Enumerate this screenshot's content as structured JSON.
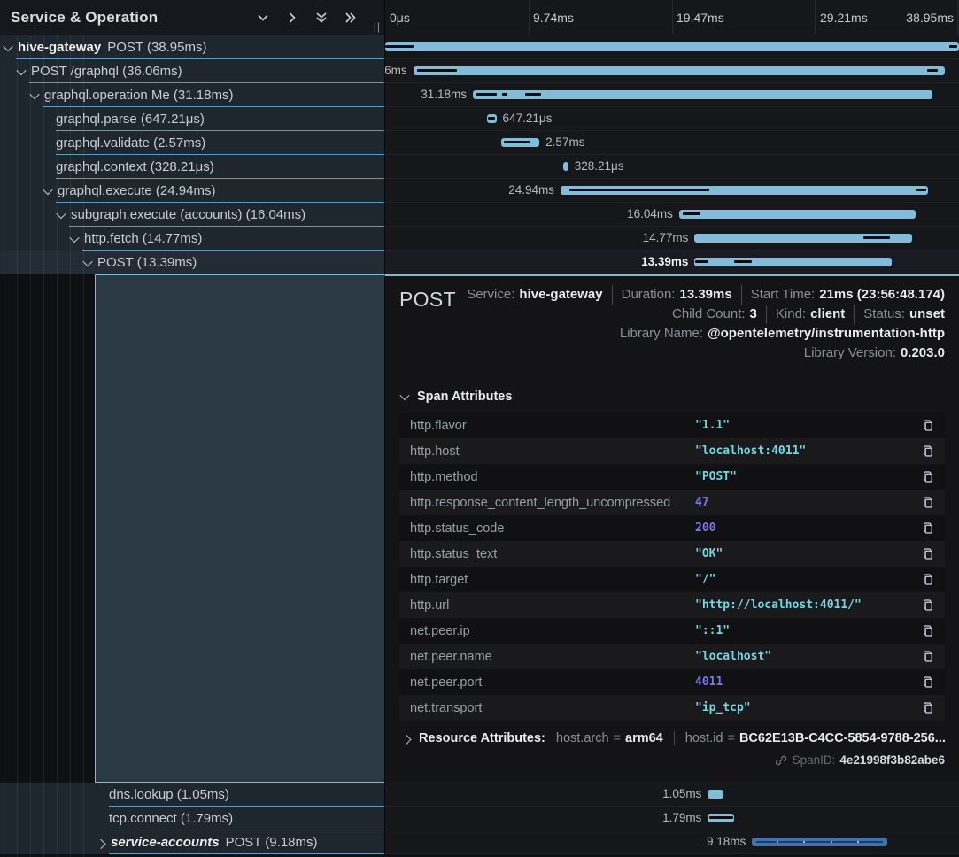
{
  "header": {
    "title": "Service & Operation"
  },
  "ui": {
    "resizer_glyph": "||",
    "accent_bar_color": "#82bcd8",
    "alt_bar_color": "#3f71b5",
    "selection_border_color": "#7fb9d2",
    "row_separator_color": "#5d9cbc",
    "string_value_color": "#72d7e2",
    "number_value_color": "#7e74ea"
  },
  "ruler": {
    "ticks": [
      {
        "label": "0μs"
      },
      {
        "label": "9.74ms"
      },
      {
        "label": "19.47ms"
      },
      {
        "label": "29.21ms"
      },
      {
        "label": "38.95ms"
      }
    ]
  },
  "trace": {
    "total_ms": 38.95,
    "spans": [
      {
        "service": "hive-gateway",
        "service_style": "bold",
        "operation": "POST",
        "duration_text": "38.95ms",
        "depth": 0,
        "chevron": "down",
        "start_ms": 0,
        "dur_ms": 38.95,
        "label_side": "none",
        "label": "",
        "marks": [
          [
            0,
            5
          ],
          [
            98.3,
            99.7
          ]
        ]
      },
      {
        "operation": "POST /graphql",
        "duration_text": "36.06ms",
        "depth": 1,
        "chevron": "down",
        "start_ms": 1.9,
        "dur_ms": 36.06,
        "label_side": "left",
        "label": "36.06ms",
        "marks": [
          [
            0.7,
            8.2
          ],
          [
            96.7,
            98.8
          ]
        ]
      },
      {
        "operation": "graphql.operation Me",
        "duration_text": "31.18ms",
        "depth": 2,
        "chevron": "down",
        "start_ms": 5.95,
        "dur_ms": 31.18,
        "label_side": "left",
        "label": "31.18ms",
        "marks": [
          [
            0.8,
            5.2
          ],
          [
            6.4,
            7.5
          ],
          [
            11.4,
            14.8
          ]
        ]
      },
      {
        "operation": "graphql.parse",
        "duration_text": "647.21μs",
        "depth": 3,
        "chevron": null,
        "start_ms": 6.9,
        "dur_ms": 0.64721,
        "label_side": "right",
        "label": "647.21μs",
        "marks": [
          [
            10,
            90
          ]
        ]
      },
      {
        "operation": "graphql.validate",
        "duration_text": "2.57ms",
        "depth": 3,
        "chevron": null,
        "start_ms": 7.9,
        "dur_ms": 2.57,
        "label_side": "right",
        "label": "2.57ms",
        "marks": [
          [
            5,
            75
          ]
        ]
      },
      {
        "operation": "graphql.context",
        "duration_text": "328.21μs",
        "depth": 3,
        "chevron": null,
        "start_ms": 12.1,
        "dur_ms": 0.32821,
        "label_side": "right",
        "label": "328.21μs",
        "marks": []
      },
      {
        "operation": "graphql.execute",
        "duration_text": "24.94ms",
        "depth": 3,
        "chevron": "down",
        "start_ms": 11.9,
        "dur_ms": 24.94,
        "label_side": "left",
        "label": "24.94ms",
        "marks": [
          [
            2.4,
            40.5
          ],
          [
            97,
            99.5
          ]
        ]
      },
      {
        "operation": "subgraph.execute (accounts)",
        "duration_text": "16.04ms",
        "depth": 4,
        "chevron": "down",
        "start_ms": 19.95,
        "dur_ms": 16.04,
        "label_side": "left",
        "label": "16.04ms",
        "marks": [
          [
            1.5,
            9
          ]
        ]
      },
      {
        "operation": "http.fetch",
        "duration_text": "14.77ms",
        "depth": 5,
        "chevron": "down",
        "start_ms": 21.0,
        "dur_ms": 14.77,
        "label_side": "left",
        "label": "14.77ms",
        "marks": [
          [
            77.6,
            89.8
          ]
        ]
      },
      {
        "operation": "POST",
        "duration_text": "13.39ms",
        "depth": 6,
        "chevron": "down",
        "start_ms": 21.0,
        "dur_ms": 13.39,
        "label_side": "left",
        "label": "13.39ms",
        "marks": [
          [
            0.5,
            7
          ],
          [
            20,
            29
          ]
        ],
        "selected": true
      },
      {
        "operation": "dns.lookup",
        "duration_text": "1.05ms",
        "depth": 7,
        "chevron": null,
        "start_ms": 21.9,
        "dur_ms": 1.05,
        "label_side": "left",
        "label": "1.05ms",
        "marks": [],
        "after_detail": true
      },
      {
        "operation": "tcp.connect",
        "duration_text": "1.79ms",
        "depth": 7,
        "chevron": null,
        "start_ms": 21.9,
        "dur_ms": 1.79,
        "label_side": "left",
        "label": "1.79ms",
        "marks": [
          [
            5,
            95
          ]
        ],
        "after_detail": true
      },
      {
        "service": "service-accounts",
        "service_style": "bold-italic",
        "operation": "POST",
        "duration_text": "9.18ms",
        "depth": 7,
        "chevron": "right",
        "start_ms": 24.9,
        "dur_ms": 9.18,
        "label_side": "left",
        "label": "9.18ms",
        "marks": [],
        "bar_style": "alt",
        "after_detail": true
      }
    ]
  },
  "detail": {
    "title": "POST",
    "meta": [
      {
        "items": [
          {
            "k": "Service:",
            "v": "hive-gateway"
          },
          {
            "k": "Duration:",
            "v": "13.39ms"
          },
          {
            "k": "Start Time:",
            "v": "21ms (23:56:48.174)"
          }
        ]
      },
      {
        "items": [
          {
            "k": "Child Count:",
            "v": "3"
          },
          {
            "k": "Kind:",
            "v": "client"
          },
          {
            "k": "Status:",
            "v": "unset"
          }
        ]
      },
      {
        "items": [
          {
            "k": "Library Name:",
            "v": "@opentelemetry/instrumentation-http"
          }
        ]
      },
      {
        "items": [
          {
            "k": "Library Version:",
            "v": "0.203.0"
          }
        ]
      }
    ],
    "section_label": "Span Attributes",
    "attributes": [
      {
        "key": "http.flavor",
        "value": "\"1.1\"",
        "type": "string"
      },
      {
        "key": "http.host",
        "value": "\"localhost:4011\"",
        "type": "string"
      },
      {
        "key": "http.method",
        "value": "\"POST\"",
        "type": "string"
      },
      {
        "key": "http.response_content_length_uncompressed",
        "value": "47",
        "type": "number"
      },
      {
        "key": "http.status_code",
        "value": "200",
        "type": "number"
      },
      {
        "key": "http.status_text",
        "value": "\"OK\"",
        "type": "string"
      },
      {
        "key": "http.target",
        "value": "\"/\"",
        "type": "string"
      },
      {
        "key": "http.url",
        "value": "\"http://localhost:4011/\"",
        "type": "string"
      },
      {
        "key": "net.peer.ip",
        "value": "\"::1\"",
        "type": "string"
      },
      {
        "key": "net.peer.name",
        "value": "\"localhost\"",
        "type": "string"
      },
      {
        "key": "net.peer.port",
        "value": "4011",
        "type": "number"
      },
      {
        "key": "net.transport",
        "value": "\"ip_tcp\"",
        "type": "string"
      }
    ],
    "resource": {
      "label": "Resource Attributes:",
      "eq": "=",
      "items": [
        {
          "key": "host.arch",
          "value": "arm64"
        },
        {
          "key": "host.id",
          "value": "BC62E13B-C4CC-5854-9788-256..."
        }
      ]
    },
    "span_id": {
      "label": "SpanID:",
      "value": "4e21998f3b82abe6"
    }
  }
}
